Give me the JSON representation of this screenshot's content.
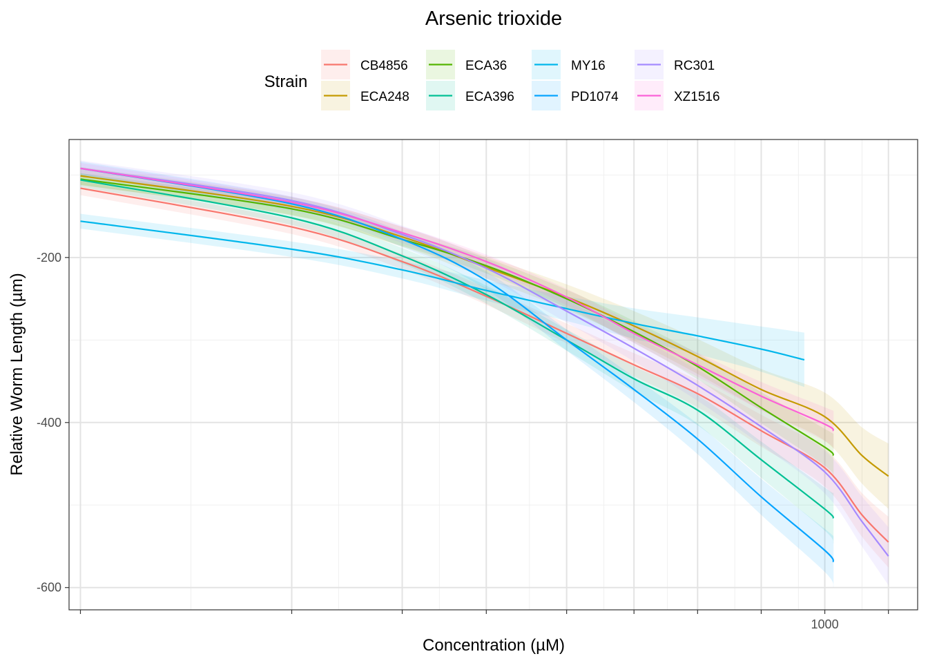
{
  "chart_data": {
    "type": "line",
    "title": "Arsenic trioxide",
    "xlabel": "Concentration (µM)",
    "ylabel": "Relative Worm Length (µm)",
    "x_scale": "log",
    "xlim": [
      0.265,
      2750
    ],
    "ylim": [
      -627,
      -57
    ],
    "x_ticks": [
      0.3,
      3,
      10,
      25,
      60,
      125,
      250,
      500,
      1000,
      2000
    ],
    "x_tick_labels": [
      "",
      "",
      "",
      "",
      "",
      "",
      "",
      "",
      "1000",
      ""
    ],
    "x_minor_gridlines": [
      1,
      5,
      15,
      40,
      90,
      180,
      375,
      750,
      1500
    ],
    "y_ticks": [
      -600,
      -400,
      -200
    ],
    "y_tick_labels": [
      "-600",
      "-400",
      "-200"
    ],
    "y_minor_gridlines": [
      -500,
      -300,
      -100
    ],
    "grid": true,
    "legend": {
      "title": "Strain",
      "position": "top"
    },
    "series": [
      {
        "name": "CB4856",
        "color": "#F8766D",
        "band": 14,
        "x": [
          0.3,
          3,
          10,
          25,
          60,
          125,
          250,
          500,
          1000,
          1500,
          2000
        ],
        "y": [
          -116,
          -163,
          -205,
          -247,
          -292,
          -330,
          -365,
          -410,
          -455,
          -512,
          -545
        ]
      },
      {
        "name": "ECA248",
        "color": "#C49A00",
        "band": 18,
        "x": [
          0.3,
          3,
          10,
          25,
          60,
          125,
          250,
          500,
          1000,
          1500,
          2000
        ],
        "y": [
          -101,
          -138,
          -175,
          -212,
          -248,
          -283,
          -320,
          -360,
          -393,
          -440,
          -465
        ]
      },
      {
        "name": "ECA36",
        "color": "#53B400",
        "band": 12,
        "x": [
          0.3,
          3,
          10,
          25,
          60,
          125,
          250,
          500,
          1000,
          1100
        ],
        "y": [
          -105,
          -141,
          -178,
          -210,
          -250,
          -290,
          -332,
          -382,
          -430,
          -440
        ]
      },
      {
        "name": "ECA396",
        "color": "#00C094",
        "band": 14,
        "x": [
          0.3,
          3,
          10,
          25,
          60,
          125,
          250,
          500,
          1000,
          1100
        ],
        "y": [
          -106,
          -152,
          -198,
          -245,
          -300,
          -347,
          -385,
          -445,
          -505,
          -516
        ]
      },
      {
        "name": "MY16",
        "color": "#00B6EB",
        "band": 15,
        "x": [
          0.3,
          3,
          10,
          25,
          60,
          125,
          250,
          500,
          800
        ],
        "y": [
          -156,
          -190,
          -215,
          -240,
          -262,
          -280,
          -295,
          -311,
          -324
        ]
      },
      {
        "name": "PD1074",
        "color": "#06A4FF",
        "band": 14,
        "x": [
          0.3,
          3,
          10,
          25,
          60,
          125,
          250,
          500,
          1000,
          1100
        ],
        "y": [
          -92,
          -135,
          -178,
          -228,
          -300,
          -360,
          -420,
          -490,
          -555,
          -569
        ]
      },
      {
        "name": "RC301",
        "color": "#A58AFF",
        "band": 16,
        "x": [
          0.3,
          3,
          10,
          25,
          60,
          125,
          250,
          500,
          1000,
          1500,
          2000
        ],
        "y": [
          -92,
          -131,
          -172,
          -213,
          -265,
          -310,
          -355,
          -405,
          -460,
          -520,
          -562
        ]
      },
      {
        "name": "XZ1516",
        "color": "#FB61D7",
        "band": 11,
        "x": [
          0.3,
          3,
          10,
          25,
          60,
          125,
          250,
          500,
          1000,
          1100
        ],
        "y": [
          -92,
          -133,
          -170,
          -205,
          -248,
          -292,
          -330,
          -368,
          -402,
          -410
        ]
      }
    ]
  }
}
